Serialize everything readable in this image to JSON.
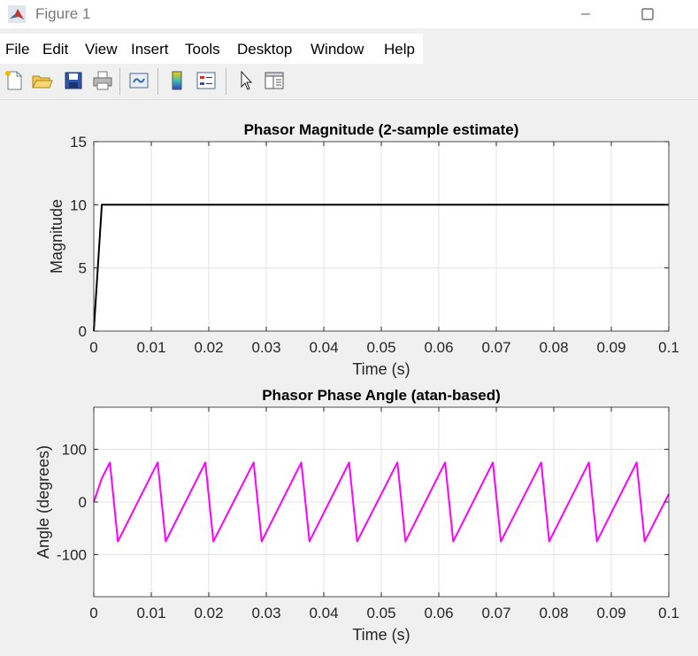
{
  "window": {
    "title": "Figure 1"
  },
  "menu": {
    "items": [
      "File",
      "Edit",
      "View",
      "Insert",
      "Tools",
      "Desktop",
      "Window",
      "Help"
    ]
  },
  "toolbar": {
    "icons": [
      "new-figure-icon",
      "open-file-icon",
      "save-icon",
      "print-icon",
      "link-icon",
      "colorbar-icon",
      "legend-icon",
      "pointer-icon",
      "property-inspector-icon"
    ]
  },
  "chart_data": [
    {
      "type": "line",
      "title": "Phasor Magnitude (2-sample estimate)",
      "xlabel": "Time (s)",
      "ylabel": "Magnitude",
      "xlim": [
        0,
        0.1
      ],
      "ylim": [
        0,
        15
      ],
      "xticks": [
        0,
        0.01,
        0.02,
        0.03,
        0.04,
        0.05,
        0.06,
        0.07,
        0.08,
        0.09,
        0.1
      ],
      "xtick_labels": [
        "0",
        "0.01",
        "0.02",
        "0.03",
        "0.04",
        "0.05",
        "0.06",
        "0.07",
        "0.08",
        "0.09",
        "0.1"
      ],
      "yticks": [
        0,
        5,
        10,
        15
      ],
      "ytick_labels": [
        "0",
        "5",
        "10",
        "15"
      ],
      "grid": true,
      "color": "#000000",
      "series": [
        {
          "x": [
            0,
            0.0014,
            0.1
          ],
          "y": [
            0,
            10,
            10
          ]
        }
      ]
    },
    {
      "type": "line",
      "title": "Phasor Phase Angle (atan-based)",
      "xlabel": "Time (s)",
      "ylabel": "Angle (degrees)",
      "xlim": [
        0,
        0.1
      ],
      "ylim": [
        -180,
        180
      ],
      "xticks": [
        0,
        0.01,
        0.02,
        0.03,
        0.04,
        0.05,
        0.06,
        0.07,
        0.08,
        0.09,
        0.1
      ],
      "xtick_labels": [
        "0",
        "0.01",
        "0.02",
        "0.03",
        "0.04",
        "0.05",
        "0.06",
        "0.07",
        "0.08",
        "0.09",
        "0.1"
      ],
      "yticks": [
        100,
        0,
        -100
      ],
      "ytick_labels": [
        "100",
        "0",
        "-100"
      ],
      "grid": true,
      "color": "#ff00ff",
      "series": [
        {
          "x": [
            0,
            0.0014,
            0.0028,
            0.0042,
            0.0111,
            0.0125,
            0.0194,
            0.0208,
            0.0278,
            0.0292,
            0.0361,
            0.0375,
            0.0444,
            0.0458,
            0.0528,
            0.0542,
            0.0611,
            0.0625,
            0.0694,
            0.0708,
            0.0778,
            0.0792,
            0.0861,
            0.0875,
            0.0944,
            0.0958,
            0.1
          ],
          "y": [
            0,
            45,
            75,
            -75,
            75,
            -75,
            75,
            -75,
            75,
            -75,
            75,
            -75,
            75,
            -75,
            75,
            -75,
            75,
            -75,
            75,
            -75,
            75,
            -75,
            75,
            -75,
            75,
            -75,
            15
          ]
        }
      ]
    }
  ]
}
